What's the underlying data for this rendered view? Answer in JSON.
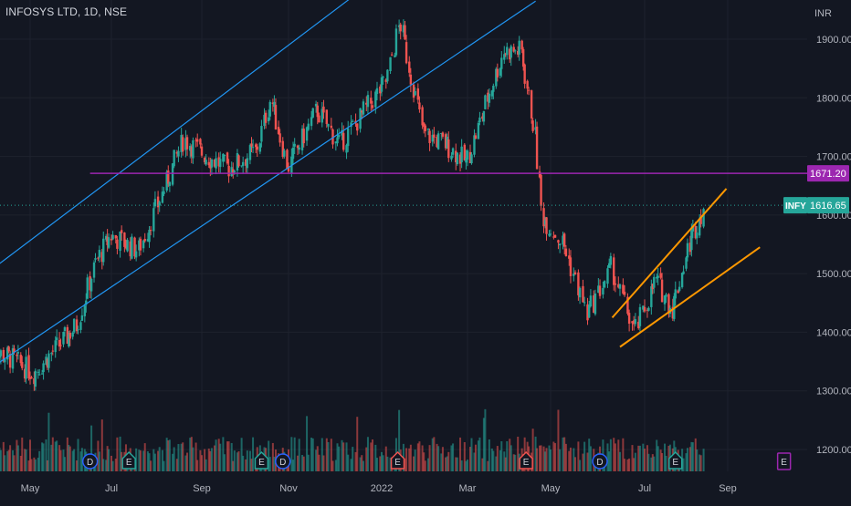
{
  "header": {
    "title": "INFOSYS LTD, 1D, NSE"
  },
  "chart_data": {
    "type": "candlestick",
    "currency_label": "INR",
    "y_ticks": [
      "1900.00",
      "1800.00",
      "1700.00",
      "1600.00",
      "1500.00",
      "1400.00",
      "1300.00",
      "1200.00"
    ],
    "y_tick_values": [
      1900,
      1800,
      1700,
      1600,
      1500,
      1400,
      1300,
      1200
    ],
    "ylim": [
      1155,
      1965
    ],
    "x_ticks": [
      "May",
      "Jul",
      "Sep",
      "Nov",
      "2022",
      "Mar",
      "May",
      "Jul",
      "Sep"
    ],
    "x_tick_dates": [
      "2021-05-01",
      "2021-07-01",
      "2021-09-01",
      "2021-11-01",
      "2022-01-01",
      "2022-03-01",
      "2022-05-01",
      "2022-07-01",
      "2022-09-01"
    ],
    "price_path": [
      [
        "2021-04-01",
        1370
      ],
      [
        "2021-04-18",
        1355
      ],
      [
        "2021-05-04",
        1330
      ],
      [
        "2021-05-20",
        1370
      ],
      [
        "2021-06-05",
        1410
      ],
      [
        "2021-06-20",
        1520
      ],
      [
        "2021-07-01",
        1565
      ],
      [
        "2021-07-20",
        1540
      ],
      [
        "2021-08-01",
        1610
      ],
      [
        "2021-08-20",
        1730
      ],
      [
        "2021-09-05",
        1700
      ],
      [
        "2021-09-20",
        1680
      ],
      [
        "2021-10-10",
        1710
      ],
      [
        "2021-10-20",
        1800
      ],
      [
        "2021-11-01",
        1680
      ],
      [
        "2021-11-20",
        1780
      ],
      [
        "2021-12-05",
        1720
      ],
      [
        "2021-12-22",
        1780
      ],
      [
        "2022-01-05",
        1830
      ],
      [
        "2022-01-14",
        1930
      ],
      [
        "2022-01-30",
        1740
      ],
      [
        "2022-02-15",
        1720
      ],
      [
        "2022-03-01",
        1690
      ],
      [
        "2022-03-15",
        1790
      ],
      [
        "2022-03-28",
        1880
      ],
      [
        "2022-04-10",
        1880
      ],
      [
        "2022-04-20",
        1740
      ],
      [
        "2022-04-25",
        1600
      ],
      [
        "2022-05-10",
        1550
      ],
      [
        "2022-05-25",
        1430
      ],
      [
        "2022-06-10",
        1510
      ],
      [
        "2022-06-25",
        1400
      ],
      [
        "2022-07-10",
        1490
      ],
      [
        "2022-07-22",
        1440
      ],
      [
        "2022-08-05",
        1560
      ],
      [
        "2022-08-15",
        1616.65
      ]
    ],
    "trend_lines": [
      {
        "color": "#2196f3",
        "points": [
          [
            "2021-04-01",
            1505
          ],
          [
            "2022-01-01",
            2010
          ]
        ]
      },
      {
        "color": "#2196f3",
        "points": [
          [
            "2021-04-01",
            1338
          ],
          [
            "2022-04-20",
            1965
          ]
        ]
      },
      {
        "color": "#ff9800",
        "points": [
          [
            "2022-06-10",
            1425
          ],
          [
            "2022-08-31",
            1645
          ]
        ]
      },
      {
        "color": "#ff9800",
        "points": [
          [
            "2022-06-15",
            1375
          ],
          [
            "2022-09-25",
            1545
          ]
        ]
      }
    ],
    "horizontal_line": {
      "value": 1671.2,
      "label": "1671.20",
      "color": "#9c27b0",
      "start": "2021-06-15"
    },
    "last_price": {
      "symbol": "INFY",
      "value": 1616.65,
      "label": "1616.65",
      "color": "#26a69a"
    },
    "event_markers": [
      {
        "date": "2021-06-15",
        "letter": "D",
        "kind": "dividend",
        "color": "#2962ff"
      },
      {
        "date": "2021-07-13",
        "letter": "E",
        "kind": "earnings",
        "color": "#26a69a"
      },
      {
        "date": "2021-10-13",
        "letter": "E",
        "kind": "earnings",
        "color": "#26a69a"
      },
      {
        "date": "2021-10-28",
        "letter": "D",
        "kind": "dividend",
        "color": "#2962ff"
      },
      {
        "date": "2022-01-12",
        "letter": "E",
        "kind": "earnings",
        "color": "#ef5350"
      },
      {
        "date": "2022-04-13",
        "letter": "E",
        "kind": "earnings",
        "color": "#ef5350"
      },
      {
        "date": "2022-06-02",
        "letter": "D",
        "kind": "dividend",
        "color": "#2962ff"
      },
      {
        "date": "2022-07-24",
        "letter": "E",
        "kind": "earnings",
        "color": "#26a69a"
      },
      {
        "date": "2022-10-13",
        "letter": "E",
        "kind": "earnings-upcoming",
        "color": "#9c27b0"
      }
    ],
    "colors": {
      "up": "#26a69a",
      "down": "#ef5350",
      "grid": "#1e222d",
      "text": "#b2b5be"
    }
  }
}
